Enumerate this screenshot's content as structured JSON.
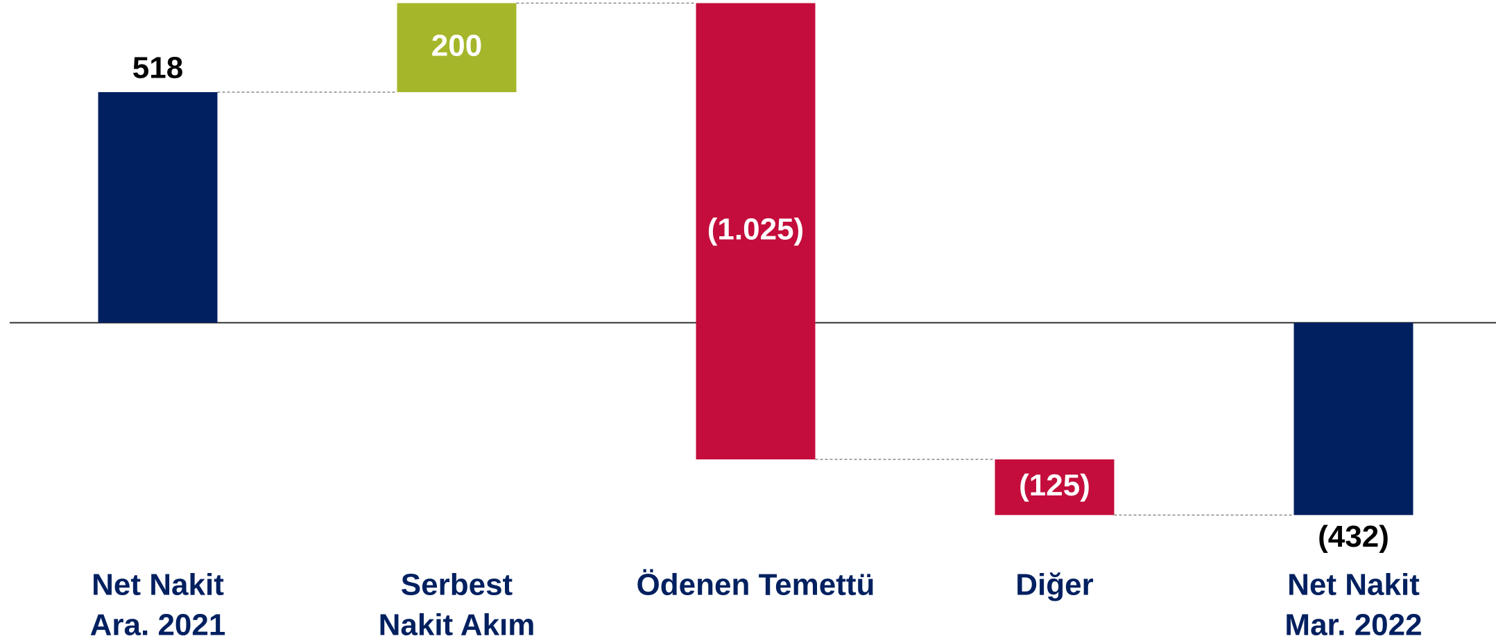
{
  "chart_data": {
    "type": "waterfall",
    "categories": [
      [
        "Net Nakit",
        "Ara. 2021"
      ],
      [
        "Serbest",
        "Nakit Akım"
      ],
      [
        "Ödenen Temettü"
      ],
      [
        "Diğer"
      ],
      [
        "Net Nakit",
        "Mar. 2022"
      ]
    ],
    "values": [
      518,
      200,
      -1025,
      -125,
      -432
    ],
    "value_labels": [
      "518",
      "200",
      "(1.025)",
      "(125)",
      "(432)"
    ],
    "totals": [
      true,
      false,
      false,
      false,
      true
    ],
    "colors": [
      "#002060",
      "#a5b62a",
      "#c40d3c",
      "#c40d3c",
      "#002060"
    ],
    "ylim": [
      -500,
      725
    ]
  }
}
